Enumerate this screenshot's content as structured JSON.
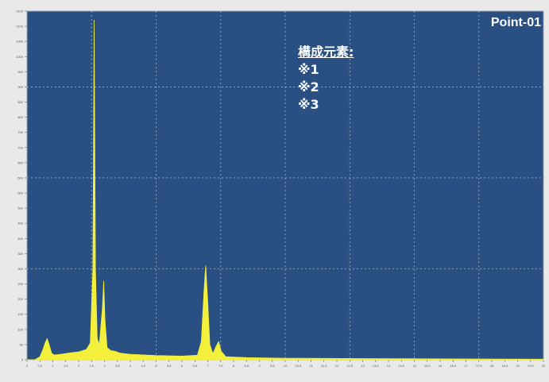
{
  "point_label": "Point-01",
  "annotation": {
    "heading": "構成元素:",
    "items": [
      "※1",
      "※2",
      "※3"
    ]
  },
  "status_text": "",
  "colors": {
    "plot_bg": "#2a4f82",
    "spectrum": "#f2f03a",
    "grid": "#c9d2dc",
    "frame": "#e9e9e9"
  },
  "chart_data": {
    "type": "line",
    "title": "",
    "xlabel": "",
    "ylabel": "",
    "xlim": [
      0,
      20
    ],
    "ylim": [
      0,
      1150
    ],
    "grid": true,
    "series": [
      {
        "values": [
          [
            0.0,
            0
          ],
          [
            0.3,
            0
          ],
          [
            0.5,
            10
          ],
          [
            0.6,
            30
          ],
          [
            0.7,
            55
          ],
          [
            0.78,
            70
          ],
          [
            0.85,
            52
          ],
          [
            0.95,
            22
          ],
          [
            1.05,
            16
          ],
          [
            1.3,
            18
          ],
          [
            1.6,
            22
          ],
          [
            2.0,
            26
          ],
          [
            2.3,
            34
          ],
          [
            2.45,
            55
          ],
          [
            2.55,
            300
          ],
          [
            2.6,
            1120
          ],
          [
            2.65,
            300
          ],
          [
            2.72,
            70
          ],
          [
            2.8,
            50
          ],
          [
            2.92,
            170
          ],
          [
            2.97,
            260
          ],
          [
            3.02,
            130
          ],
          [
            3.1,
            40
          ],
          [
            3.25,
            30
          ],
          [
            3.4,
            28
          ],
          [
            3.6,
            22
          ],
          [
            4.0,
            18
          ],
          [
            5.0,
            14
          ],
          [
            6.0,
            12
          ],
          [
            6.6,
            15
          ],
          [
            6.75,
            60
          ],
          [
            6.85,
            220
          ],
          [
            6.92,
            310
          ],
          [
            7.0,
            190
          ],
          [
            7.08,
            50
          ],
          [
            7.2,
            20
          ],
          [
            7.3,
            40
          ],
          [
            7.42,
            60
          ],
          [
            7.52,
            28
          ],
          [
            7.7,
            10
          ],
          [
            8.5,
            7
          ],
          [
            10.0,
            5
          ],
          [
            13.0,
            4
          ],
          [
            16.0,
            3
          ],
          [
            20.0,
            2
          ]
        ]
      }
    ],
    "x_ticks": [
      0,
      0.5,
      1,
      1.5,
      2,
      2.5,
      3,
      3.5,
      4,
      4.5,
      5,
      5.5,
      6,
      6.5,
      7,
      7.5,
      8,
      8.5,
      9,
      9.5,
      10,
      10.5,
      11,
      11.5,
      12,
      12.5,
      13,
      13.5,
      14,
      14.5,
      15,
      15.5,
      16,
      16.5,
      17,
      17.5,
      18,
      18.5,
      19,
      19.5,
      20
    ],
    "y_ticks": [
      0,
      50,
      100,
      150,
      200,
      250,
      300,
      350,
      400,
      450,
      500,
      550,
      600,
      650,
      700,
      750,
      800,
      850,
      900,
      950,
      1000,
      1050,
      1100,
      1150
    ]
  }
}
